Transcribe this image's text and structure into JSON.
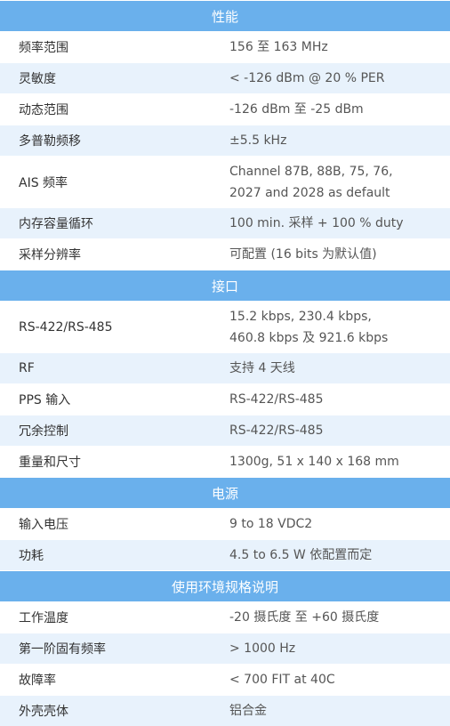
{
  "sections": [
    {
      "title": "性能",
      "rows": [
        {
          "label": "频率范围",
          "value": [
            "156  至 163 MHz"
          ]
        },
        {
          "label": "灵敏度",
          "value": [
            "< -126 dBm @ 20 % PER"
          ]
        },
        {
          "label": "动态范围",
          "value": [
            "-126 dBm 至 -25 dBm"
          ]
        },
        {
          "label": "多普勒频移",
          "value": [
            "±5.5 kHz"
          ]
        },
        {
          "label": "AIS  频率",
          "value": [
            "Channel 87B, 88B, 75, 76,",
            "2027 and 2028 as default"
          ]
        },
        {
          "label": "内存容量循环",
          "value": [
            "100 min.  采样 + 100 % duty"
          ]
        },
        {
          "label": "采样分辨率",
          "value": [
            "可配置 (16 bits 为默认值)"
          ]
        }
      ]
    },
    {
      "title": "接口",
      "rows": [
        {
          "label": "RS-422/RS-485",
          "value": [
            "15.2 kbps, 230.4 kbps,",
            "460.8 kbps 及 921.6 kbps"
          ]
        },
        {
          "label": "RF",
          "value": [
            "支持 4 天线"
          ]
        },
        {
          "label": "PPS 输入",
          "value": [
            "RS-422/RS-485"
          ]
        },
        {
          "label": "冗余控制",
          "value": [
            "RS-422/RS-485"
          ]
        },
        {
          "label": "重量和尺寸",
          "value": [
            "1300g, 51 x 140 x 168 mm"
          ]
        }
      ]
    },
    {
      "title": "电源",
      "rows": [
        {
          "label": "输入电压",
          "value": [
            "9 to 18 VDC2"
          ]
        },
        {
          "label": "功耗",
          "value": [
            "4.5 to 6.5 W 依配置而定"
          ]
        }
      ]
    },
    {
      "title": "使用环境规格说明",
      "rows": [
        {
          "label": "工作温度",
          "value": [
            "-20  摄氏度 至 +60 摄氏度"
          ]
        },
        {
          "label": "第一阶固有频率",
          "value": [
            "> 1000 Hz"
          ]
        },
        {
          "label": "故障率",
          "value": [
            "< 700 FIT at 40C"
          ]
        },
        {
          "label": "外壳壳体",
          "value": [
            "铝合金"
          ]
        }
      ]
    }
  ],
  "colors": {
    "header_bg": "#6ab0ec",
    "stripe_bg": "#e8f2fc"
  }
}
